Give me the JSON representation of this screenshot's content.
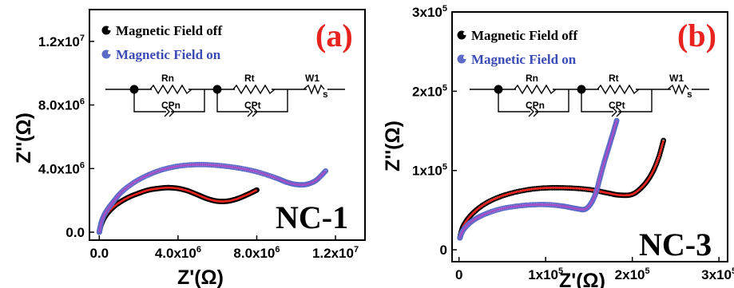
{
  "chart_data": [
    {
      "type": "scatter",
      "panel_label": "(a)",
      "sample_label": "NC-1",
      "xlabel": "Z'(Ω)",
      "ylabel": "Z''(Ω)",
      "xlim": [
        -500000,
        13500000
      ],
      "ylim": [
        -500000,
        14000000
      ],
      "xticks": [
        {
          "v": 0,
          "base": "0.0",
          "exp": ""
        },
        {
          "v": 4000000,
          "base": "4.0x10",
          "exp": "6"
        },
        {
          "v": 8000000,
          "base": "8.0x10",
          "exp": "6"
        },
        {
          "v": 12000000,
          "base": "1.2x10",
          "exp": "7"
        }
      ],
      "yticks": [
        {
          "v": 0,
          "base": "0.0",
          "exp": ""
        },
        {
          "v": 4000000,
          "base": "4.0x10",
          "exp": "6"
        },
        {
          "v": 8000000,
          "base": "8.0x10",
          "exp": "6"
        },
        {
          "v": 12000000,
          "base": "1.2x10",
          "exp": "7"
        }
      ],
      "circuit": {
        "r1": "Rn",
        "c1": "CPn",
        "r2": "Rt",
        "c2": "CPt",
        "w": "W1",
        "wsub": "s"
      },
      "series": [
        {
          "name": "Magnetic Field off",
          "marker_color": "#000000",
          "fit_color": "#e8221e",
          "x": [
            0,
            100000,
            300000,
            600000,
            1000000,
            1500000,
            2000000,
            2500000,
            3000000,
            3500000,
            4000000,
            4500000,
            5000000,
            5500000,
            6000000,
            6500000,
            7000000,
            7500000,
            8000000
          ],
          "y": [
            0,
            500000,
            1000000,
            1450000,
            1850000,
            2200000,
            2450000,
            2650000,
            2750000,
            2800000,
            2750000,
            2600000,
            2350000,
            2100000,
            1950000,
            1950000,
            2100000,
            2350000,
            2650000
          ]
        },
        {
          "name": "Magnetic Field on",
          "marker_color": "#5b6bc7",
          "fit_color": "#a24ec8",
          "x": [
            0,
            100000,
            300000,
            700000,
            1200000,
            2000000,
            3000000,
            4000000,
            5000000,
            6000000,
            7000000,
            8000000,
            9000000,
            9500000,
            10000000,
            10500000,
            11000000,
            11500000
          ],
          "y": [
            0,
            600000,
            1200000,
            1900000,
            2600000,
            3300000,
            3850000,
            4150000,
            4250000,
            4200000,
            4050000,
            3800000,
            3400000,
            3150000,
            3000000,
            3000000,
            3250000,
            3850000
          ]
        }
      ]
    },
    {
      "type": "scatter",
      "panel_label": "(b)",
      "sample_label": "NC-3",
      "xlabel": "Z'(Ω)",
      "ylabel": "Z''(Ω)",
      "xlim": [
        -8000,
        310000
      ],
      "ylim": [
        -15000,
        300000
      ],
      "xticks": [
        {
          "v": 0,
          "base": "0",
          "exp": ""
        },
        {
          "v": 100000,
          "base": "1x10",
          "exp": "5"
        },
        {
          "v": 200000,
          "base": "2x10",
          "exp": "5"
        },
        {
          "v": 300000,
          "base": "3x10",
          "exp": "5"
        }
      ],
      "yticks": [
        {
          "v": 0,
          "base": "0",
          "exp": ""
        },
        {
          "v": 100000,
          "base": "1x10",
          "exp": "5"
        },
        {
          "v": 200000,
          "base": "2x10",
          "exp": "5"
        },
        {
          "v": 300000,
          "base": "3x10",
          "exp": "5"
        }
      ],
      "circuit": {
        "r1": "Rn",
        "c1": "CPn",
        "r2": "Rt",
        "c2": "CPt",
        "w": "W1",
        "wsub": "s"
      },
      "series": [
        {
          "name": "Magnetic Field off",
          "marker_color": "#000000",
          "fit_color": "#e8221e",
          "x": [
            1000,
            5000,
            15000,
            30000,
            50000,
            75000,
            100000,
            125000,
            150000,
            170000,
            185000,
            200000,
            212000,
            222000,
            230000,
            236000
          ],
          "y": [
            15000,
            30000,
            45000,
            58000,
            68000,
            75000,
            78000,
            78000,
            76000,
            72000,
            69000,
            70000,
            80000,
            95000,
            115000,
            138000
          ]
        },
        {
          "name": "Magnetic Field on",
          "marker_color": "#5b6bc7",
          "fit_color": "#a24ec8",
          "x": [
            1000,
            5000,
            15000,
            30000,
            50000,
            75000,
            100000,
            120000,
            135000,
            145000,
            152000,
            158000,
            163000,
            168000,
            173000,
            178000,
            182000
          ],
          "y": [
            15000,
            25000,
            36000,
            45000,
            52000,
            56000,
            57000,
            55000,
            52000,
            51000,
            58000,
            72000,
            92000,
            112000,
            130000,
            148000,
            163000
          ]
        }
      ]
    }
  ]
}
